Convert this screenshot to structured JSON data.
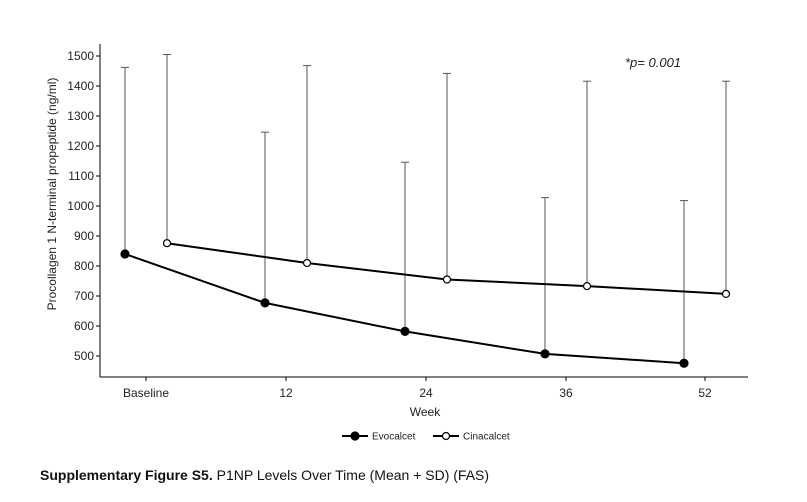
{
  "chart_data": {
    "type": "line",
    "x_categories": [
      "Baseline",
      "12",
      "24",
      "36",
      "52"
    ],
    "xlabel": "Week",
    "ylabel": "Procollagen 1 N-terminal propeptide (ng/ml)",
    "yticks": [
      500,
      600,
      700,
      800,
      900,
      1000,
      1100,
      1200,
      1300,
      1400,
      1500
    ],
    "ylim": [
      450,
      1520
    ],
    "annotation": "*p= 0.001",
    "legend_position": "bottom-center",
    "series": [
      {
        "name": "Evocalcet",
        "marker": "filled-circle",
        "mean": [
          840,
          677,
          582,
          507,
          476
        ],
        "mean_plus_sd": [
          1462,
          1246,
          1146,
          1028,
          1018
        ]
      },
      {
        "name": "Cinacalcet",
        "marker": "open-circle",
        "mean": [
          876,
          810,
          755,
          733,
          707
        ],
        "mean_plus_sd": [
          1505,
          1468,
          1442,
          1416,
          1416
        ]
      }
    ]
  },
  "caption": {
    "bold": "Supplementary Figure S5.",
    "text": " P1NP Levels Over Time (Mean + SD) (FAS)"
  }
}
